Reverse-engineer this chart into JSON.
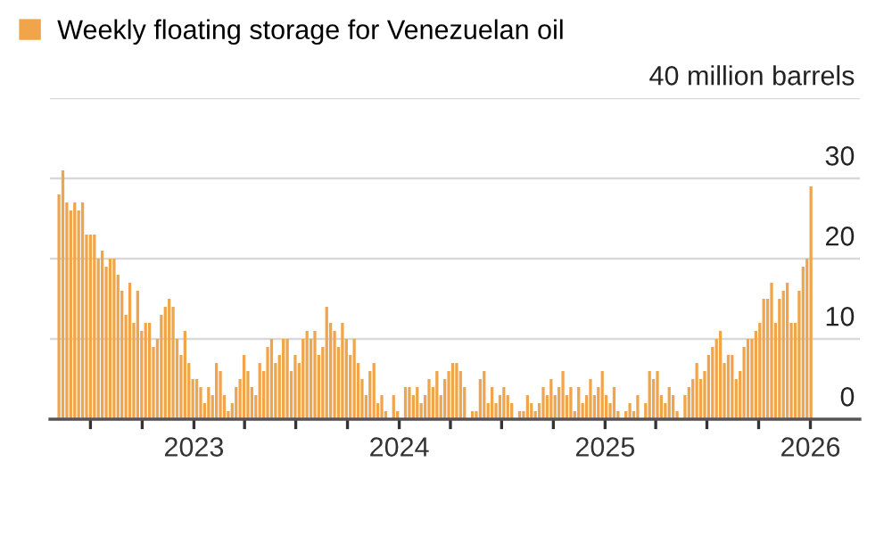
{
  "chart_data": {
    "type": "bar",
    "x": [
      "2022-05-06",
      "2022-05-13",
      "2022-05-20",
      "2022-05-27",
      "2022-06-03",
      "2022-06-10",
      "2022-06-17",
      "2022-06-24",
      "2022-07-01",
      "2022-07-08",
      "2022-07-15",
      "2022-07-22",
      "2022-07-29",
      "2022-08-05",
      "2022-08-12",
      "2022-08-19",
      "2022-08-26",
      "2022-09-02",
      "2022-09-09",
      "2022-09-16",
      "2022-09-23",
      "2022-09-30",
      "2022-10-07",
      "2022-10-14",
      "2022-10-21",
      "2022-10-28",
      "2022-11-04",
      "2022-11-11",
      "2022-11-18",
      "2022-11-25",
      "2022-12-02",
      "2022-12-09",
      "2022-12-16",
      "2022-12-23",
      "2022-12-30",
      "2023-01-06",
      "2023-01-13",
      "2023-01-20",
      "2023-01-27",
      "2023-02-03",
      "2023-02-10",
      "2023-02-17",
      "2023-02-24",
      "2023-03-03",
      "2023-03-10",
      "2023-03-17",
      "2023-03-24",
      "2023-03-31",
      "2023-04-07",
      "2023-04-14",
      "2023-04-21",
      "2023-04-28",
      "2023-05-05",
      "2023-05-12",
      "2023-05-19",
      "2023-05-26",
      "2023-06-02",
      "2023-06-09",
      "2023-06-16",
      "2023-06-23",
      "2023-06-30",
      "2023-07-07",
      "2023-07-14",
      "2023-07-21",
      "2023-07-28",
      "2023-08-04",
      "2023-08-11",
      "2023-08-18",
      "2023-08-25",
      "2023-09-01",
      "2023-09-08",
      "2023-09-15",
      "2023-09-22",
      "2023-09-29",
      "2023-10-06",
      "2023-10-13",
      "2023-10-20",
      "2023-10-27",
      "2023-11-03",
      "2023-11-10",
      "2023-11-17",
      "2023-11-24",
      "2023-12-01",
      "2023-12-08",
      "2023-12-15",
      "2023-12-22",
      "2023-12-29",
      "2024-01-05",
      "2024-01-12",
      "2024-01-19",
      "2024-01-26",
      "2024-02-02",
      "2024-02-09",
      "2024-02-16",
      "2024-02-23",
      "2024-03-01",
      "2024-03-08",
      "2024-03-15",
      "2024-03-22",
      "2024-03-29",
      "2024-04-05",
      "2024-04-12",
      "2024-04-19",
      "2024-04-26",
      "2024-05-03",
      "2024-05-10",
      "2024-05-17",
      "2024-05-24",
      "2024-05-31",
      "2024-06-07",
      "2024-06-14",
      "2024-06-21",
      "2024-06-28",
      "2024-07-05",
      "2024-07-12",
      "2024-07-19",
      "2024-07-26",
      "2024-08-02",
      "2024-08-09",
      "2024-08-16",
      "2024-08-23",
      "2024-08-30",
      "2024-09-06",
      "2024-09-13",
      "2024-09-20",
      "2024-09-27",
      "2024-10-04",
      "2024-10-11",
      "2024-10-18",
      "2024-10-25",
      "2024-11-01",
      "2024-11-08",
      "2024-11-15",
      "2024-11-22",
      "2024-11-29",
      "2024-12-06",
      "2024-12-13",
      "2024-12-20",
      "2024-12-27",
      "2025-01-03",
      "2025-01-10",
      "2025-01-17",
      "2025-01-24",
      "2025-01-31",
      "2025-02-07",
      "2025-02-14",
      "2025-02-21",
      "2025-02-28",
      "2025-03-07",
      "2025-03-14",
      "2025-03-21",
      "2025-03-28",
      "2025-04-04",
      "2025-04-11",
      "2025-04-18",
      "2025-04-25",
      "2025-05-02",
      "2025-05-09",
      "2025-05-16",
      "2025-05-23",
      "2025-05-30",
      "2025-06-06",
      "2025-06-13",
      "2025-06-20",
      "2025-06-27",
      "2025-07-04",
      "2025-07-11",
      "2025-07-18",
      "2025-07-25",
      "2025-08-01",
      "2025-08-08",
      "2025-08-15",
      "2025-08-22",
      "2025-08-29",
      "2025-09-05",
      "2025-09-12",
      "2025-09-19",
      "2025-09-26",
      "2025-10-03",
      "2025-10-10",
      "2025-10-17",
      "2025-10-24",
      "2025-10-31",
      "2025-11-07",
      "2025-11-14",
      "2025-11-21",
      "2025-11-28",
      "2025-12-05",
      "2025-12-12",
      "2025-12-19",
      "2025-12-26",
      "2026-01-02"
    ],
    "series": [
      {
        "name": "Weekly floating storage for Venezuelan oil",
        "color": "#f0a54a",
        "values": [
          28,
          31,
          27,
          26,
          27,
          26,
          27,
          23,
          23,
          23,
          20,
          21,
          19,
          20,
          20,
          18,
          16,
          13,
          17,
          12,
          16,
          11,
          12,
          12,
          9,
          10,
          13,
          14,
          15,
          14,
          10,
          8,
          11,
          7,
          5,
          5,
          4,
          2,
          4,
          3,
          7,
          6,
          3,
          1,
          2,
          4,
          5,
          8,
          6,
          4,
          3,
          7,
          6,
          9,
          10,
          7,
          8,
          10,
          10,
          6,
          8,
          7,
          10,
          11,
          10,
          11,
          8,
          9,
          14,
          12,
          11,
          9,
          12,
          10,
          8,
          10,
          7,
          5,
          3,
          6,
          7,
          2,
          3,
          1,
          0,
          3,
          1,
          0,
          4,
          4,
          3,
          4,
          2,
          3,
          5,
          4,
          6,
          3,
          5,
          6,
          7,
          7,
          6,
          4,
          0,
          1,
          1,
          5,
          6,
          2,
          4,
          2,
          3,
          4,
          3,
          2,
          0,
          1,
          1,
          3,
          2,
          1,
          2,
          4,
          3,
          5,
          3,
          4,
          6,
          3,
          4,
          1,
          4,
          2,
          3,
          5,
          3,
          4,
          6,
          3,
          2,
          4,
          1,
          0,
          1,
          2,
          1,
          3,
          0,
          2,
          6,
          5,
          6,
          3,
          2,
          4,
          3,
          1,
          0,
          3,
          4,
          5,
          7,
          5,
          6,
          8,
          9,
          10,
          11,
          7,
          8,
          8,
          5,
          6,
          9,
          10,
          10,
          11,
          12,
          15,
          15,
          17,
          12,
          15,
          16,
          17,
          12,
          12,
          16,
          19,
          20,
          29
        ]
      }
    ],
    "xlim": [
      "2022-04-20",
      "2026-03-30"
    ],
    "xticks": [
      {
        "value": "2022-07-01",
        "label": null
      },
      {
        "value": "2022-10-01",
        "label": null
      },
      {
        "value": "2023-01-01",
        "label": "2023"
      },
      {
        "value": "2023-04-01",
        "label": null
      },
      {
        "value": "2023-07-01",
        "label": null
      },
      {
        "value": "2023-10-01",
        "label": null
      },
      {
        "value": "2024-01-01",
        "label": "2024"
      },
      {
        "value": "2024-04-01",
        "label": null
      },
      {
        "value": "2024-07-01",
        "label": null
      },
      {
        "value": "2024-10-01",
        "label": null
      },
      {
        "value": "2025-01-01",
        "label": "2025"
      },
      {
        "value": "2025-04-01",
        "label": null
      },
      {
        "value": "2025-07-01",
        "label": null
      },
      {
        "value": "2025-10-01",
        "label": null
      },
      {
        "value": "2026-01-01",
        "label": "2026"
      }
    ],
    "ylim": [
      0,
      40
    ],
    "yticks": [
      0,
      10,
      20,
      30,
      {
        "value": 40,
        "label": "40 million barrels"
      }
    ],
    "grid": "y",
    "legend": "top left"
  }
}
